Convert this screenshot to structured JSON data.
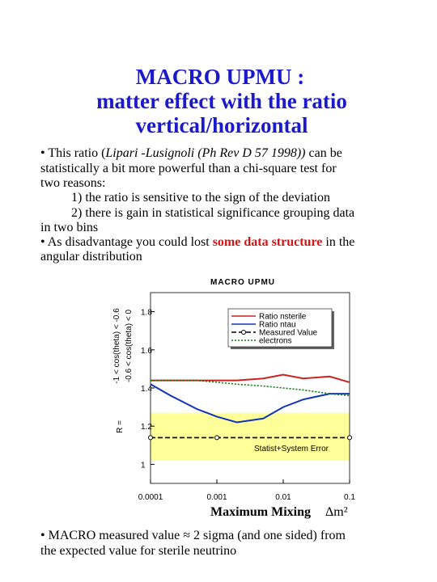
{
  "title": [
    "MACRO UPMU :",
    "matter effect with the ratio",
    "vertical/horizontal"
  ],
  "body": {
    "lines": [
      [
        "• This ratio (",
        "Lipari -Lusignoli (Ph Rev D 57 1998))",
        "  can be"
      ],
      [
        "statistically a bit more powerful than a chi-square test for"
      ],
      [
        "two reasons:"
      ],
      [
        "1) the ratio is sensitive to the sign of the deviation"
      ],
      [
        "2)  there is gain in statistical significance grouping data"
      ],
      [
        "in two    bins"
      ],
      [
        "• As disadvantage you could lost ",
        "some data structure",
        " in the"
      ],
      [
        "angular distribution"
      ]
    ]
  },
  "chart_data": {
    "type": "line",
    "title": "MACRO  UPMU",
    "ylabel": [
      "R =",
      "-1 < cos(theta) < -0.6",
      "-0.6 < cos(theta) < 0"
    ],
    "xlabel": "Maximum Mixing",
    "xlabel_symbol": "Δm²",
    "xscale": "log",
    "xlim": [
      0.0001,
      0.1
    ],
    "xticks": [
      0.0001,
      0.001,
      0.01,
      0.1
    ],
    "ylim": [
      0.9,
      1.9
    ],
    "yticks": [
      1,
      1.2,
      1.4,
      1.6,
      1.8
    ],
    "x": [
      0.0001,
      0.0002,
      0.0005,
      0.001,
      0.002,
      0.005,
      0.01,
      0.02,
      0.05,
      0.1
    ],
    "error_band": [
      1.02,
      1.27
    ],
    "error_band_color": "#ffff99",
    "error_band_label": "Statist+System   Error",
    "series": [
      {
        "name": "Ratio nsterile",
        "color": "#cc2222",
        "style": "solid",
        "values": [
          1.44,
          1.44,
          1.44,
          1.44,
          1.44,
          1.45,
          1.47,
          1.45,
          1.46,
          1.43
        ]
      },
      {
        "name": "Ratio ntau",
        "color": "#1133bb",
        "style": "solid",
        "values": [
          1.42,
          1.36,
          1.29,
          1.25,
          1.22,
          1.24,
          1.3,
          1.34,
          1.37,
          1.37
        ]
      },
      {
        "name": "Measured Value",
        "color": "#000000",
        "style": "dashed",
        "marker": "circle",
        "x": [
          0.0001,
          0.001,
          0.1
        ],
        "values": [
          1.14,
          1.14,
          1.14
        ]
      },
      {
        "name": "electrons",
        "color": "#117711",
        "style": "dotted",
        "values": [
          1.44,
          1.44,
          1.44,
          1.43,
          1.42,
          1.41,
          1.4,
          1.39,
          1.37,
          1.36
        ]
      }
    ]
  },
  "footer": [
    "•  MACRO measured value ≈ 2 sigma (and one sided) from",
    "the expected value for sterile neutrino"
  ]
}
